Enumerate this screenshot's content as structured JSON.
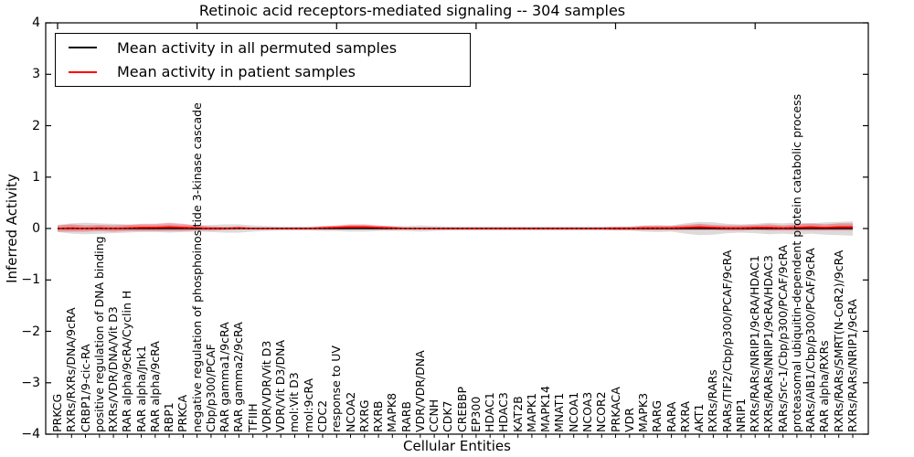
{
  "title": "Retinoic acid receptors-mediated signaling -- 304 samples",
  "axes": {
    "xlabel": "Cellular Entities",
    "ylabel": "Inferred Activity",
    "yticks": [
      4,
      3,
      2,
      1,
      0,
      -1,
      -2,
      -3,
      -4
    ],
    "ylim": [
      -4,
      4
    ]
  },
  "colors": {
    "permuted_line": "#000000",
    "patient_line": "#ff0000",
    "permuted_band": "#b0b0b0",
    "patient_band": "#ff0000",
    "zero_dash": "#000000",
    "spine": "#000000"
  },
  "chart_data": {
    "type": "line",
    "title": "Retinoic acid receptors-mediated signaling -- 304 samples",
    "xlabel": "Cellular Entities",
    "ylabel": "Inferred Activity",
    "ylim": [
      -4,
      4
    ],
    "grid": false,
    "legend_position": "upper left",
    "categories": [
      "PRKCG",
      "RXRs/RXRs/DNA/9cRA",
      "CRBP1/9-cic-RA",
      "positive regulation of DNA binding",
      "RXRs/VDR/DNA/Vit D3",
      "RAR alpha/9cRA/Cyclin H",
      "RAR alpha/Jnk1",
      "RAR alpha/9cRA",
      "RBP1",
      "PRKCA",
      "negative regulation of phosphoinositide 3-kinase cascade",
      "Cbp/p300/PCAF",
      "RAR gamma1/9cRA",
      "RAR gamma2/9cRA",
      "TFIIH",
      "VDR/VDR/Vit D3",
      "VDR/Vit D3/DNA",
      "mol:Vit D3",
      "mol:9cRA",
      "CDC2",
      "response to UV",
      "NCOA2",
      "RXRG",
      "RXRB",
      "MAPK8",
      "RARB",
      "VDR/VDR/DNA",
      "CCNH",
      "CDK7",
      "CREBBP",
      "EP300",
      "HDAC1",
      "HDAC3",
      "KAT2B",
      "MAPK1",
      "MAPK14",
      "MNAT1",
      "NCOA1",
      "NCOA3",
      "NCOR2",
      "PRKACA",
      "VDR",
      "MAPK3",
      "RARG",
      "RARA",
      "RXRA",
      "AKT1",
      "RXRs/RARs",
      "RARs/TIF2/Cbp/p300/PCAF/9cRA",
      "NRIP1",
      "RXRs/RARs/NRIP1/9cRA/HDAC1",
      "RXRs/RARs/NRIP1/9cRA/HDAC3",
      "RARs/Src-1/Cbp/p300/PCAF/9cRA",
      "proteasomal ubiquitin-dependent protein catabolic process",
      "RARs/AIB1/Cbp/p300/PCAF/9cRA",
      "RAR alpha/RXRs",
      "RXRs/RARs/SMRT(N-CoR2)/9cRA",
      "RXRs/RARs/NRIP1/9cRA"
    ],
    "series": [
      {
        "name": "Mean activity in all permuted samples",
        "color": "#000000",
        "values": [
          0,
          0,
          0,
          0,
          0,
          0,
          0,
          0,
          0,
          0,
          0,
          0,
          0,
          0,
          0,
          0,
          0,
          0,
          0,
          0,
          0,
          0,
          0,
          0,
          0,
          0,
          0,
          0,
          0,
          0,
          0,
          0,
          0,
          0,
          0,
          0,
          0,
          0,
          0,
          0,
          0,
          0,
          0,
          0,
          0,
          0,
          0,
          0,
          0,
          0,
          0,
          0,
          0,
          0,
          0,
          0,
          0,
          0
        ],
        "band_halfwidth": [
          0.07,
          0.1,
          0.11,
          0.1,
          0.09,
          0.08,
          0.07,
          0.07,
          0.08,
          0.07,
          0.06,
          0.07,
          0.08,
          0.08,
          0.06,
          0.05,
          0.04,
          0.04,
          0.04,
          0.05,
          0.05,
          0.06,
          0.06,
          0.05,
          0.05,
          0.05,
          0.06,
          0.05,
          0.04,
          0.04,
          0.04,
          0.04,
          0.04,
          0.04,
          0.04,
          0.04,
          0.04,
          0.04,
          0.04,
          0.04,
          0.04,
          0.04,
          0.06,
          0.07,
          0.06,
          0.1,
          0.13,
          0.12,
          0.09,
          0.08,
          0.09,
          0.11,
          0.1,
          0.12,
          0.1,
          0.12,
          0.13,
          0.14
        ]
      },
      {
        "name": "Mean activity in patient samples",
        "color": "#ff0000",
        "values": [
          0,
          0.01,
          0,
          0.01,
          0,
          0.01,
          0.02,
          0.02,
          0.03,
          0.02,
          0.01,
          0,
          0,
          0.01,
          0,
          0,
          0,
          0,
          0,
          0.01,
          0.02,
          0.03,
          0.03,
          0.02,
          0.01,
          0,
          0,
          0,
          0,
          0,
          0,
          0,
          0,
          0,
          0,
          0,
          0,
          0,
          0,
          0,
          0,
          0,
          0.01,
          0.01,
          0.01,
          0.02,
          0.03,
          0.02,
          0.01,
          0.01,
          0.02,
          0.02,
          0.01,
          0.02,
          0.03,
          0.02,
          0.03,
          0.03
        ],
        "band_halfwidth": [
          0.06,
          0.07,
          0.06,
          0.06,
          0.06,
          0.06,
          0.07,
          0.07,
          0.08,
          0.07,
          0.05,
          0.04,
          0.03,
          0.03,
          0.02,
          0.02,
          0.02,
          0.02,
          0.02,
          0.03,
          0.04,
          0.05,
          0.05,
          0.04,
          0.03,
          0.02,
          0.02,
          0.02,
          0.02,
          0.02,
          0.02,
          0.02,
          0.02,
          0.02,
          0.02,
          0.02,
          0.02,
          0.02,
          0.02,
          0.02,
          0.03,
          0.03,
          0.04,
          0.04,
          0.04,
          0.05,
          0.06,
          0.05,
          0.05,
          0.05,
          0.05,
          0.06,
          0.05,
          0.06,
          0.07,
          0.06,
          0.07,
          0.07
        ]
      }
    ]
  }
}
